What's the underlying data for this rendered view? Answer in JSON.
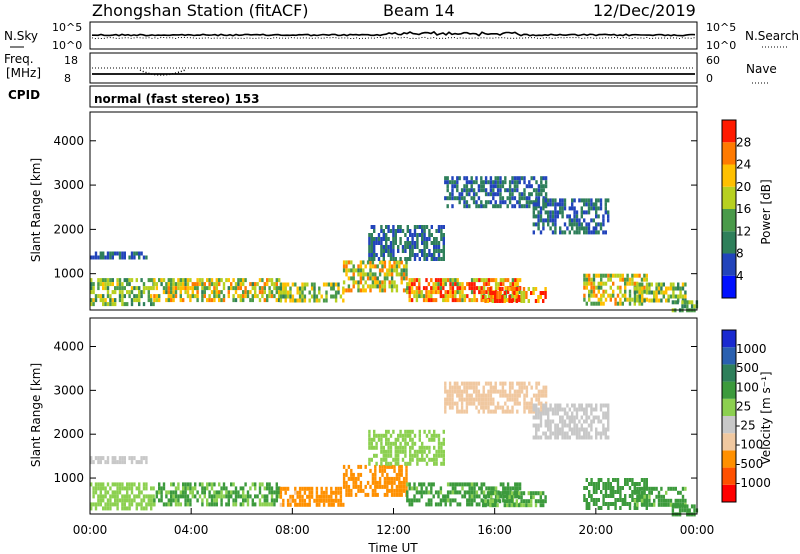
{
  "header": {
    "station": "Zhongshan Station (fitACF)",
    "beam": "Beam 14",
    "date": "12/Dec/2019"
  },
  "nsky_panel": {
    "left_label": "N.Sky",
    "right_label": "N.Search",
    "y_top": "10^5",
    "y_bottom": "10^0",
    "right_top": "10^5",
    "right_bottom": "10^0"
  },
  "freq_panel": {
    "left_label_1": "Freq.",
    "left_label_2": "[MHz]",
    "y_top": "18",
    "y_bottom": "8",
    "right_label": "Nave",
    "right_top": "60",
    "right_bottom": "0"
  },
  "cpid_panel": {
    "left_label": "CPID",
    "text": "normal (fast stereo) 153"
  },
  "colors": {
    "power_scale": [
      "#0010ff",
      "#2244bb",
      "#2e7f5a",
      "#4a9a4a",
      "#b7d020",
      "#ffc000",
      "#ff7a00",
      "#ff1a00"
    ],
    "velocity_scale": [
      "#ff0000",
      "#ff5000",
      "#ff9000",
      "#f0c8a0",
      "#c8c8c8",
      "#8cd050",
      "#3c9a3c",
      "#2e7f5a",
      "#2a60b0",
      "#1a2ad0"
    ]
  },
  "chart_data": [
    {
      "type": "heatmap",
      "name": "power",
      "xlabel": "",
      "ylabel": "Slant Range [km]",
      "xlim_hours": [
        0,
        24
      ],
      "ylim_km": [
        180,
        4650
      ],
      "yticks": [
        "1000",
        "2000",
        "3000",
        "4000"
      ],
      "colorbar_label": "Power [dB]",
      "colorbar_ticks": [
        "4",
        "8",
        "12",
        "16",
        "20",
        "24",
        "28"
      ],
      "colorbar_range": [
        0,
        30
      ],
      "regions": [
        {
          "t0": 0.0,
          "t1": 2.2,
          "r0": 1400,
          "r1": 1500,
          "level": 8
        },
        {
          "t0": 0.0,
          "t1": 2.5,
          "r0": 300,
          "r1": 900,
          "level": 14
        },
        {
          "t0": 2.5,
          "t1": 7.5,
          "r0": 400,
          "r1": 900,
          "level": 18
        },
        {
          "t0": 7.5,
          "t1": 10.0,
          "r0": 350,
          "r1": 800,
          "level": 16
        },
        {
          "t0": 10.0,
          "t1": 12.5,
          "r0": 600,
          "r1": 1300,
          "level": 18
        },
        {
          "t0": 11.0,
          "t1": 14.0,
          "r0": 1300,
          "r1": 2100,
          "level": 8
        },
        {
          "t0": 12.5,
          "t1": 17.0,
          "r0": 400,
          "r1": 900,
          "level": 22
        },
        {
          "t0": 15.5,
          "t1": 18.0,
          "r0": 350,
          "r1": 700,
          "level": 26
        },
        {
          "t0": 14.0,
          "t1": 18.0,
          "r0": 2500,
          "r1": 3200,
          "level": 8
        },
        {
          "t0": 17.5,
          "t1": 20.5,
          "r0": 1900,
          "r1": 2700,
          "level": 8
        },
        {
          "t0": 19.5,
          "t1": 22.0,
          "r0": 350,
          "r1": 1000,
          "level": 18
        },
        {
          "t0": 21.5,
          "t1": 23.5,
          "r0": 350,
          "r1": 800,
          "level": 16
        },
        {
          "t0": 23.0,
          "t1": 24.0,
          "r0": 200,
          "r1": 400,
          "level": 12
        }
      ]
    },
    {
      "type": "heatmap",
      "name": "velocity",
      "xlabel": "Time UT",
      "ylabel": "Slant Range [km]",
      "xlim_hours": [
        0,
        24
      ],
      "ylim_km": [
        180,
        4650
      ],
      "xticks": [
        "00:00",
        "04:00",
        "08:00",
        "12:00",
        "16:00",
        "20:00",
        "00:00"
      ],
      "yticks": [
        "1000",
        "2000",
        "3000",
        "4000"
      ],
      "colorbar_label": "Velocity [m s⁻¹]",
      "colorbar_ticks": [
        "1000",
        "500",
        "100",
        "25",
        "-25",
        "-100",
        "-500",
        "-1000"
      ],
      "regions": [
        {
          "t0": 0.0,
          "t1": 2.2,
          "r0": 1400,
          "r1": 1500,
          "level": 0
        },
        {
          "t0": 0.0,
          "t1": 2.5,
          "r0": 300,
          "r1": 900,
          "level": 60
        },
        {
          "t0": 2.5,
          "t1": 7.5,
          "r0": 400,
          "r1": 900,
          "level": 120
        },
        {
          "t0": 7.5,
          "t1": 10.0,
          "r0": 350,
          "r1": 800,
          "level": -150
        },
        {
          "t0": 10.0,
          "t1": 12.5,
          "r0": 600,
          "r1": 1300,
          "level": -250
        },
        {
          "t0": 11.0,
          "t1": 14.0,
          "r0": 1300,
          "r1": 2100,
          "level": 60
        },
        {
          "t0": 12.5,
          "t1": 17.0,
          "r0": 400,
          "r1": 900,
          "level": 150
        },
        {
          "t0": 15.5,
          "t1": 18.0,
          "r0": 350,
          "r1": 700,
          "level": 120
        },
        {
          "t0": 14.0,
          "t1": 18.0,
          "r0": 2500,
          "r1": 3200,
          "level": -60
        },
        {
          "t0": 17.5,
          "t1": 20.5,
          "r0": 1900,
          "r1": 2700,
          "level": 0
        },
        {
          "t0": 19.5,
          "t1": 22.0,
          "r0": 350,
          "r1": 1000,
          "level": 200
        },
        {
          "t0": 21.5,
          "t1": 23.5,
          "r0": 350,
          "r1": 800,
          "level": 150
        },
        {
          "t0": 23.0,
          "t1": 24.0,
          "r0": 200,
          "r1": 400,
          "level": 300
        }
      ]
    }
  ]
}
